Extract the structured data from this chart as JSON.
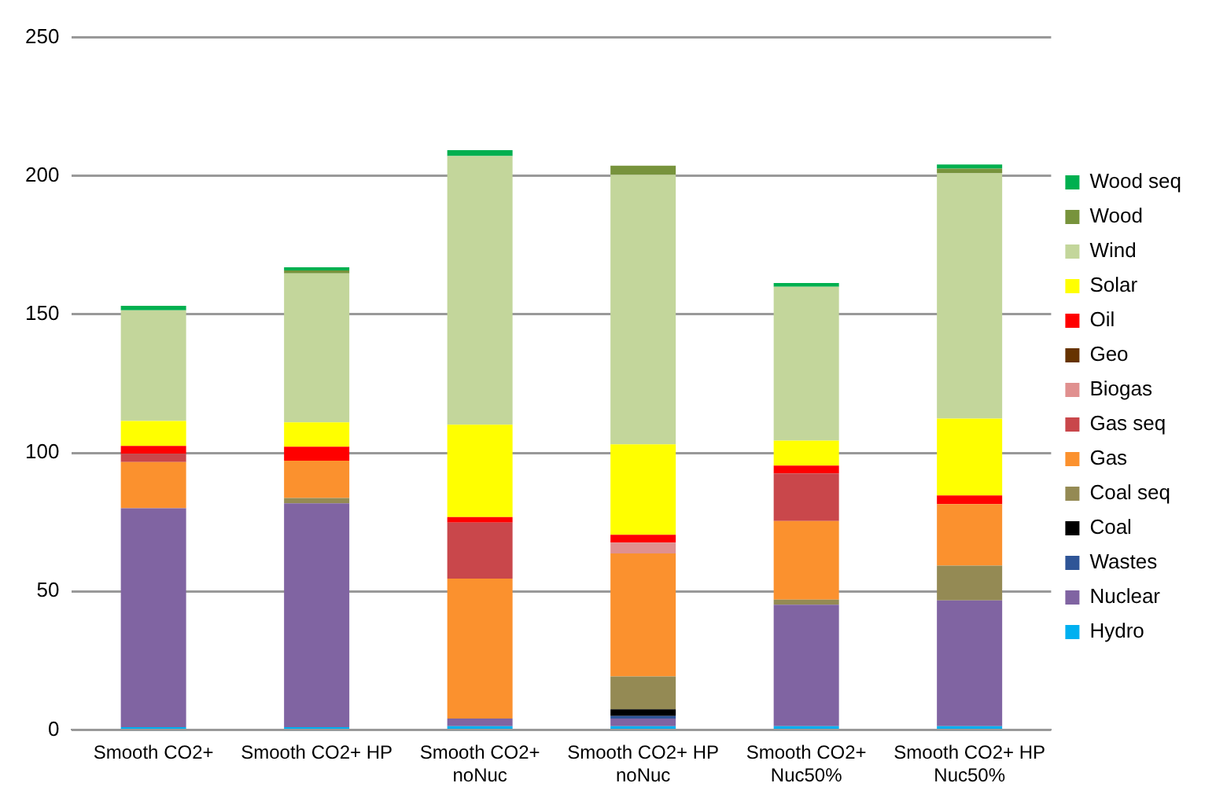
{
  "chart_data": {
    "type": "bar",
    "stacked": true,
    "categories": [
      "Smooth CO2+",
      "Smooth CO2+ HP",
      "Smooth CO2+ noNuc",
      "Smooth CO2+ HP noNuc",
      "Smooth CO2+ Nuc50%",
      "Smooth CO2+ HP Nuc50%"
    ],
    "ylim": [
      0,
      250
    ],
    "yticks": [
      0,
      50,
      100,
      150,
      200,
      250
    ],
    "grid": "y",
    "legend": "right",
    "series": [
      {
        "name": "Hydro",
        "color": "#00b0f0",
        "values": [
          1,
          1,
          1.3,
          1.3,
          1.3,
          1.3
        ]
      },
      {
        "name": "Nuclear",
        "color": "#8064a2",
        "values": [
          79,
          80.8,
          2.8,
          2.8,
          43.9,
          45.4
        ]
      },
      {
        "name": "Wastes",
        "color": "#2f5597",
        "values": [
          0,
          0,
          0,
          0.9,
          0,
          0
        ]
      },
      {
        "name": "Coal",
        "color": "#000000",
        "values": [
          0,
          0,
          0,
          2.4,
          0,
          0
        ]
      },
      {
        "name": "Coal seq",
        "color": "#948a54",
        "values": [
          0,
          1.9,
          0,
          11.9,
          1.8,
          12.6
        ]
      },
      {
        "name": "Gas",
        "color": "#fb912e",
        "values": [
          16.7,
          13.5,
          50.5,
          44.4,
          28.4,
          22.2
        ]
      },
      {
        "name": "Gas seq",
        "color": "#c9474b",
        "values": [
          3,
          0,
          20.2,
          0,
          17.2,
          0
        ]
      },
      {
        "name": "Biogas",
        "color": "#e0908f",
        "values": [
          0,
          0,
          0,
          3.9,
          0,
          0
        ]
      },
      {
        "name": "Geo",
        "color": "#663300",
        "values": [
          0,
          0,
          0,
          0,
          0,
          0
        ]
      },
      {
        "name": "Oil",
        "color": "#ff0000",
        "values": [
          2.8,
          5,
          2,
          2.8,
          2.8,
          3.1
        ]
      },
      {
        "name": "Solar",
        "color": "#ffff00",
        "values": [
          9,
          8.8,
          33.4,
          32.7,
          9,
          27.8
        ]
      },
      {
        "name": "Wind",
        "color": "#c3d69b",
        "values": [
          40,
          53.8,
          97,
          97.3,
          55.6,
          88.5
        ]
      },
      {
        "name": "Wood",
        "color": "#77933c",
        "values": [
          0,
          1.1,
          0,
          3.3,
          0,
          1.7
        ]
      },
      {
        "name": "Wood seq",
        "color": "#00b050",
        "values": [
          1.6,
          1.1,
          2.1,
          0,
          1.3,
          1.5
        ]
      }
    ]
  }
}
